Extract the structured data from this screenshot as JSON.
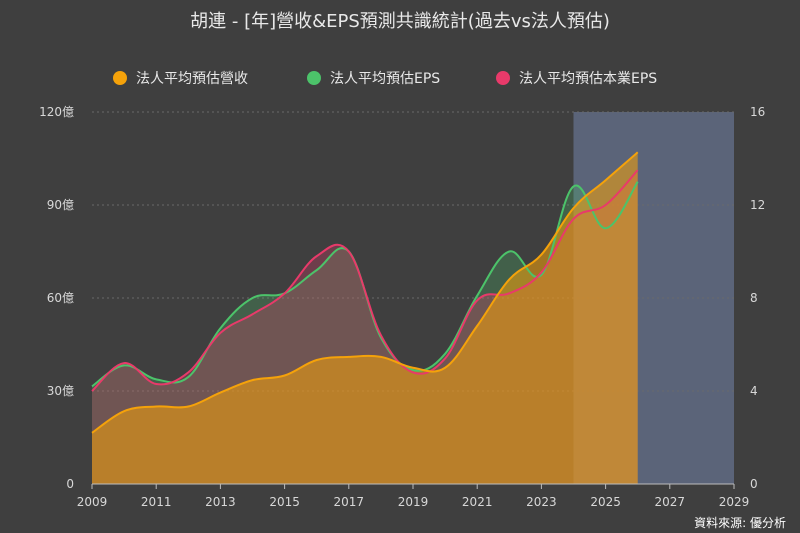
{
  "chart_data": {
    "type": "area",
    "title": "胡連 - [年]營收&EPS預測共識統計(過去vs法人預估)",
    "source": "資料來源: 優分析",
    "x": [
      2009,
      2010,
      2011,
      2012,
      2013,
      2014,
      2015,
      2016,
      2017,
      2018,
      2019,
      2020,
      2021,
      2022,
      2023,
      2024,
      2025,
      2026
    ],
    "x_ticks": [
      "2009",
      "2011",
      "2013",
      "2015",
      "2017",
      "2019",
      "2021",
      "2023",
      "2025",
      "2027",
      "2029"
    ],
    "xlim": [
      2009,
      2029
    ],
    "y_left_ticks": [
      "0",
      "30億",
      "60億",
      "90億",
      "120億"
    ],
    "y_right_ticks": [
      "0",
      "4",
      "8",
      "12",
      "16"
    ],
    "ylim_left": [
      0,
      120
    ],
    "ylim_right": [
      0,
      16
    ],
    "forecast_region": [
      2024,
      2029
    ],
    "series": [
      {
        "name": "法人平均預估營收",
        "axis": "left",
        "unit": "億",
        "color": "#f5a20a",
        "values": [
          16.5,
          23.5,
          25,
          25,
          29.5,
          33.5,
          35,
          40,
          41,
          41,
          37.5,
          37.5,
          51,
          66,
          74,
          89,
          98,
          107
        ]
      },
      {
        "name": "法人平均預估EPS",
        "axis": "right",
        "color": "#4cc36a",
        "values": [
          4.2,
          5.1,
          4.5,
          4.6,
          6.7,
          8.0,
          8.2,
          9.2,
          10.0,
          6.3,
          4.9,
          5.6,
          8.1,
          10.0,
          9.0,
          12.8,
          11.0,
          13.0
        ]
      },
      {
        "name": "法人平均預估本業EPS",
        "axis": "right",
        "color": "#e83a6a",
        "values": [
          4.0,
          5.2,
          4.3,
          4.8,
          6.5,
          7.3,
          8.2,
          9.8,
          10.0,
          6.4,
          4.8,
          5.4,
          7.9,
          8.2,
          9.1,
          11.4,
          12.0,
          13.5
        ]
      }
    ]
  }
}
